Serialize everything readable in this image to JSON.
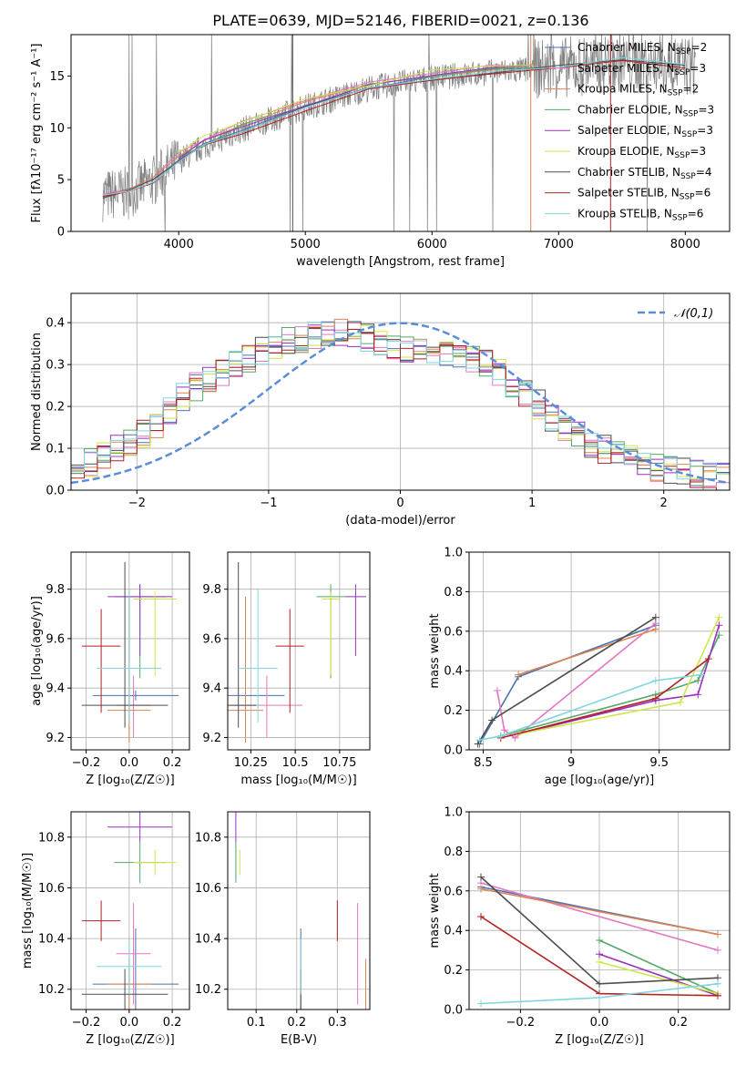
{
  "figure": {
    "title": "PLATE=0639, MJD=52146, FIBERID=0021, z=0.136"
  },
  "colors": {
    "Chabrier MILES": "#4c72b0",
    "Salpeter MILES": "#e377c2",
    "Kroupa MILES": "#dd8452",
    "Chabrier ELODIE": "#55a868",
    "Salpeter ELODIE": "#9b2fbf",
    "Kroupa ELODIE": "#cfe645",
    "Chabrier STELIB": "#4d4d4d",
    "Salpeter STELIB": "#b22222",
    "Kroupa STELIB": "#7fd6e0",
    "data": "#808080",
    "normal": "#5b8ed6"
  },
  "chart_data": [
    {
      "id": "spectrum",
      "type": "line",
      "xlabel": "wavelength [Angstrom, rest frame]",
      "ylabel": "Flux [fλ10⁻¹⁷ erg cm⁻² s⁻¹ A⁻¹]",
      "xlim": [
        3150,
        8350
      ],
      "ylim": [
        0,
        19
      ],
      "xticks": [
        4000,
        5000,
        6000,
        7000,
        8000
      ],
      "yticks": [
        0,
        5,
        10,
        15
      ],
      "grid": false,
      "legend": "upper right",
      "series": [
        {
          "name": "Chabrier MILES, N_SSP=2",
          "x": [
            3400,
            3600,
            3800,
            4000,
            4200,
            4500,
            5000,
            5500,
            6000,
            6500,
            6800
          ],
          "y": [
            3.6,
            3.8,
            5.0,
            7.0,
            8.4,
            10.0,
            12.2,
            14.0,
            15.0,
            15.6,
            15.8
          ]
        },
        {
          "name": "Salpeter MILES, N_SSP=3",
          "x": [
            3400,
            3600,
            3800,
            4000,
            4200,
            4500,
            5000,
            5500,
            6000,
            6500,
            6800
          ],
          "y": [
            3.7,
            4.0,
            5.3,
            7.4,
            8.8,
            10.4,
            12.5,
            14.2,
            15.2,
            15.8,
            16.0
          ]
        },
        {
          "name": "Kroupa MILES, N_SSP=2",
          "x": [
            3400,
            3600,
            3800,
            4000,
            4200,
            4500,
            5000,
            5500,
            6000,
            6500,
            6800
          ],
          "y": [
            3.6,
            3.9,
            5.1,
            7.2,
            8.6,
            10.2,
            12.3,
            14.1,
            15.1,
            15.7,
            15.9
          ]
        },
        {
          "name": "Chabrier ELODIE, N_SSP=3",
          "x": [
            4000,
            4200,
            4500,
            5000,
            5500,
            6000,
            6500,
            6800
          ],
          "y": [
            7.0,
            8.5,
            10.1,
            12.2,
            14.0,
            15.0,
            15.6,
            15.7
          ]
        },
        {
          "name": "Salpeter ELODIE, N_SSP=3",
          "x": [
            4000,
            4200,
            4500,
            5000,
            5500,
            6000,
            6500,
            6800
          ],
          "y": [
            7.1,
            8.6,
            10.2,
            12.3,
            14.1,
            15.1,
            15.6,
            15.8
          ]
        },
        {
          "name": "Kroupa ELODIE, N_SSP=3",
          "x": [
            4000,
            4200,
            4500,
            5000,
            5500,
            6000,
            6500,
            6800
          ],
          "y": [
            7.6,
            9.0,
            10.5,
            12.6,
            14.3,
            15.3,
            15.8,
            16.0
          ]
        },
        {
          "name": "Chabrier STELIB, N_SSP=4",
          "x": [
            3400,
            3600,
            3800,
            4000,
            4200,
            4500,
            5000,
            5500,
            6000,
            6500,
            7000,
            7500,
            8000
          ],
          "y": [
            3.5,
            3.7,
            4.9,
            6.8,
            8.2,
            9.8,
            12.0,
            13.8,
            14.8,
            15.4,
            15.8,
            16.4,
            16.0
          ]
        },
        {
          "name": "Salpeter STELIB, N_SSP=6",
          "x": [
            3400,
            3600,
            3800,
            4000,
            4200,
            4500,
            5000,
            5500,
            6000,
            6500,
            7000,
            7500,
            8000
          ],
          "y": [
            3.5,
            3.6,
            4.8,
            6.7,
            8.1,
            9.7,
            11.9,
            13.7,
            14.7,
            15.3,
            15.7,
            16.3,
            15.9
          ]
        },
        {
          "name": "Kroupa STELIB, N_SSP=6",
          "x": [
            3400,
            3600,
            3800,
            4000,
            4200,
            4500,
            5000,
            5500,
            6000,
            6500,
            7000,
            7500,
            8000
          ],
          "y": [
            3.6,
            3.8,
            5.0,
            6.9,
            8.3,
            9.9,
            12.1,
            13.9,
            14.9,
            15.5,
            15.9,
            16.5,
            16.1
          ]
        }
      ],
      "legend_entries": [
        "Chabrier MILES, N_SSP=2",
        "Salpeter MILES, N_SSP=3",
        "Kroupa MILES, N_SSP=2",
        "Chabrier ELODIE, N_SSP=3",
        "Salpeter ELODIE, N_SSP=3",
        "Kroupa ELODIE, N_SSP=3",
        "Chabrier STELIB, N_SSP=4",
        "Salpeter STELIB, N_SSP=6",
        "Kroupa STELIB, N_SSP=6"
      ]
    },
    {
      "id": "residuals",
      "type": "line",
      "xlabel": "(data-model)/error",
      "ylabel": "Normed distribution",
      "xlim": [
        -2.5,
        2.5
      ],
      "ylim": [
        0,
        0.47
      ],
      "xticks": [
        -2,
        -1,
        0,
        1,
        2
      ],
      "yticks": [
        0.0,
        0.1,
        0.2,
        0.3,
        0.4
      ],
      "grid": true,
      "legend": "upper right",
      "legend_entries": [
        "𝒩(0,1)"
      ],
      "histogram_x": [
        -2.4,
        -2.2,
        -2.0,
        -1.8,
        -1.6,
        -1.4,
        -1.2,
        -1.0,
        -0.8,
        -0.6,
        -0.4,
        -0.2,
        0.0,
        0.2,
        0.4,
        0.6,
        0.8,
        1.0,
        1.2,
        1.4,
        1.6,
        1.8,
        2.0,
        2.2,
        2.4
      ],
      "histogram_y": [
        0.06,
        0.09,
        0.12,
        0.17,
        0.24,
        0.27,
        0.31,
        0.34,
        0.36,
        0.37,
        0.38,
        0.36,
        0.34,
        0.34,
        0.33,
        0.31,
        0.27,
        0.22,
        0.16,
        0.12,
        0.09,
        0.07,
        0.05,
        0.04,
        0.03
      ],
      "normal_mean": 0,
      "normal_sigma": 1
    },
    {
      "id": "age-vs-Z",
      "type": "scatter",
      "xlabel": "Z [log₁₀(Z/Z☉)]",
      "ylabel": "age  [log₁₀(age/yr)]",
      "xlim": [
        -0.27,
        0.28
      ],
      "ylim": [
        9.15,
        9.95
      ],
      "xticks": [
        -0.2,
        0.0,
        0.2
      ],
      "yticks": [
        9.2,
        9.4,
        9.6,
        9.8
      ],
      "grid": true
    },
    {
      "id": "age-vs-mass",
      "type": "scatter",
      "xlabel": "mass [log₁₀(M/M☉)]",
      "xlim": [
        10.12,
        10.92
      ],
      "ylim": [
        9.15,
        9.95
      ],
      "xticks": [
        10.25,
        10.5,
        10.75
      ],
      "yticks": [
        9.2,
        9.4,
        9.6,
        9.8
      ],
      "grid": true
    },
    {
      "id": "weight-vs-age",
      "type": "line",
      "xlabel": "age  [log₁₀(age/yr)]",
      "ylabel": "mass weight",
      "xlim": [
        8.42,
        9.9
      ],
      "ylim": [
        0,
        1.0
      ],
      "xticks": [
        8.5,
        9.0,
        9.5
      ],
      "yticks": [
        0.0,
        0.2,
        0.4,
        0.6,
        0.8,
        1.0
      ],
      "grid": true
    },
    {
      "id": "mass-vs-Z",
      "type": "scatter",
      "xlabel": "Z [log₁₀(Z/Z☉)]",
      "ylabel": "mass [log₁₀(M/M☉)]",
      "xlim": [
        -0.27,
        0.28
      ],
      "ylim": [
        10.12,
        10.9
      ],
      "xticks": [
        -0.2,
        0.0,
        0.2
      ],
      "yticks": [
        10.2,
        10.4,
        10.6,
        10.8
      ],
      "grid": true
    },
    {
      "id": "mass-vs-ebv",
      "type": "scatter",
      "xlabel": "E(B-V)",
      "xlim": [
        0.03,
        0.38
      ],
      "ylim": [
        10.12,
        10.9
      ],
      "xticks": [
        0.1,
        0.2,
        0.3
      ],
      "yticks": [
        10.2,
        10.4,
        10.6,
        10.8
      ],
      "grid": true
    },
    {
      "id": "weight-vs-Z",
      "type": "line",
      "xlabel": "Z [log₁₀(Z/Z☉)]",
      "ylabel": "mass weight",
      "xlim": [
        -0.33,
        0.33
      ],
      "ylim": [
        0,
        1.0
      ],
      "xticks": [
        -0.2,
        0.0,
        0.2
      ],
      "yticks": [
        0.0,
        0.2,
        0.4,
        0.6,
        0.8,
        1.0
      ],
      "grid": true
    }
  ],
  "fits": [
    {
      "key": "Chabrier MILES",
      "Z": 0.03,
      "Zerr": 0.2,
      "age": 9.37,
      "ageerr": [
        9.35,
        9.39
      ],
      "mass": 10.22,
      "masserr": 0.22,
      "ebv": 0.21,
      "ages": [
        8.48,
        8.7,
        9.48
      ],
      "weights": [
        0.03,
        0.37,
        0.63
      ],
      "Zs": [
        -0.3,
        0.3
      ],
      "wz": [
        0.62,
        0.38
      ]
    },
    {
      "key": "Salpeter MILES",
      "Z": 0.02,
      "Zerr": 0.08,
      "age": 9.33,
      "ageerr": [
        9.2,
        9.45
      ],
      "mass": 10.34,
      "masserr": 0.2,
      "ebv": 0.35,
      "ages": [
        8.58,
        8.62,
        8.68,
        9.48
      ],
      "weights": [
        0.3,
        0.1,
        0.06,
        0.64
      ],
      "Zs": [
        -0.3,
        0.3
      ],
      "wz": [
        0.64,
        0.3
      ]
    },
    {
      "key": "Kroupa MILES",
      "Z": 0.0,
      "Zerr": 0.1,
      "age": 9.31,
      "ageerr": [
        9.18,
        9.77
      ],
      "mass": 10.22,
      "masserr": 0.1,
      "ebv": 0.37,
      "ages": [
        8.7,
        9.48
      ],
      "weights": [
        0.38,
        0.61
      ],
      "Zs": [
        -0.3,
        0.3
      ],
      "wz": [
        0.61,
        0.38
      ]
    },
    {
      "key": "Chabrier ELODIE",
      "Z": 0.05,
      "Zerr": 0.12,
      "age": 9.77,
      "ageerr": [
        9.44,
        9.82
      ],
      "mass": 10.7,
      "masserr": 0.08,
      "ebv": 0.05,
      "ages": [
        8.6,
        9.48,
        9.72,
        9.84
      ],
      "weights": [
        0.07,
        0.28,
        0.35,
        0.58
      ],
      "Zs": [
        0.0,
        0.3
      ],
      "wz": [
        0.35,
        0.08
      ]
    },
    {
      "key": "Salpeter ELODIE",
      "Z": 0.05,
      "Zerr": 0.15,
      "age": 9.77,
      "ageerr": [
        9.53,
        9.82
      ],
      "mass": 10.84,
      "masserr": 0.06,
      "ebv": 0.05,
      "ages": [
        8.7,
        9.48,
        9.72,
        9.84
      ],
      "weights": [
        0.08,
        0.25,
        0.28,
        0.63
      ],
      "Zs": [
        0.0,
        0.3
      ],
      "wz": [
        0.28,
        0.07
      ]
    },
    {
      "key": "Kroupa ELODIE",
      "Z": 0.12,
      "Zerr": 0.1,
      "age": 9.76,
      "ageerr": [
        9.45,
        9.79
      ],
      "mass": 10.7,
      "masserr": 0.05,
      "ebv": 0.06,
      "ages": [
        8.7,
        9.62,
        9.84
      ],
      "weights": [
        0.08,
        0.24,
        0.67
      ],
      "Zs": [
        0.0,
        0.3
      ],
      "wz": [
        0.24,
        0.08
      ]
    },
    {
      "key": "Chabrier STELIB",
      "Z": -0.02,
      "Zerr": 0.2,
      "age": 9.33,
      "ageerr": [
        9.24,
        9.91
      ],
      "mass": 10.18,
      "masserr": 0.1,
      "ebv": 0.21,
      "ages": [
        8.47,
        8.55,
        9.48
      ],
      "weights": [
        0.03,
        0.15,
        0.67
      ],
      "Zs": [
        -0.3,
        0.0,
        0.3
      ],
      "wz": [
        0.67,
        0.13,
        0.16
      ]
    },
    {
      "key": "Salpeter STELIB",
      "Z": -0.13,
      "Zerr": 0.09,
      "age": 9.57,
      "ageerr": [
        9.3,
        9.72
      ],
      "mass": 10.47,
      "masserr": 0.08,
      "ebv": 0.3,
      "ages": [
        8.6,
        9.48,
        9.78
      ],
      "weights": [
        0.06,
        0.26,
        0.46
      ],
      "Zs": [
        -0.3,
        0.0,
        0.3
      ],
      "wz": [
        0.47,
        0.08,
        0.07
      ]
    },
    {
      "key": "Kroupa STELIB",
      "Z": 0.0,
      "Zerr": 0.15,
      "age": 9.48,
      "ageerr": [
        9.26,
        9.8
      ],
      "mass": 10.29,
      "masserr": 0.11,
      "ebv": 0.21,
      "ages": [
        8.48,
        8.6,
        9.48,
        9.74
      ],
      "weights": [
        0.05,
        0.07,
        0.35,
        0.38
      ],
      "Zs": [
        -0.3,
        0.0,
        0.3
      ],
      "wz": [
        0.03,
        0.06,
        0.13
      ]
    }
  ]
}
